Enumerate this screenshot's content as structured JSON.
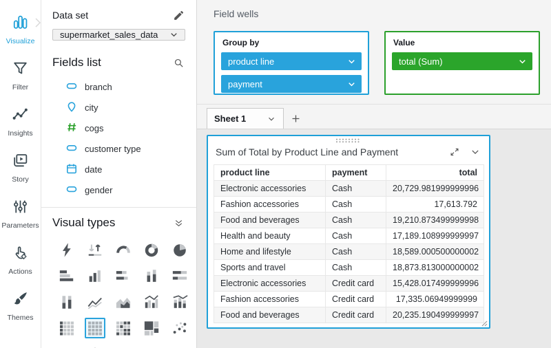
{
  "theme": {
    "accent_blue": "#1FA0D8",
    "pill_blue": "#29A3DC",
    "pill_green": "#2BA52B",
    "well_green_border": "#2BA02B",
    "canvas_gray": "#e9e9e9"
  },
  "sidebar": {
    "items": [
      {
        "label": "Visualize",
        "icon": "bar-chart-icon",
        "active": true
      },
      {
        "label": "Filter",
        "icon": "funnel-icon",
        "active": false
      },
      {
        "label": "Insights",
        "icon": "insights-icon",
        "active": false
      },
      {
        "label": "Story",
        "icon": "story-icon",
        "active": false
      },
      {
        "label": "Parameters",
        "icon": "parameters-icon",
        "active": false
      },
      {
        "label": "Actions",
        "icon": "actions-icon",
        "active": false
      },
      {
        "label": "Themes",
        "icon": "themes-icon",
        "active": false
      }
    ]
  },
  "dataset_panel": {
    "dataset_label": "Data set",
    "dataset_value": "supermarket_sales_data",
    "fields_list_title": "Fields list",
    "fields": [
      {
        "name": "branch",
        "icon": "string-field-icon"
      },
      {
        "name": "city",
        "icon": "geo-field-icon"
      },
      {
        "name": "cogs",
        "icon": "number-field-icon"
      },
      {
        "name": "customer type",
        "icon": "string-field-icon"
      },
      {
        "name": "date",
        "icon": "date-field-icon"
      },
      {
        "name": "gender",
        "icon": "string-field-icon"
      }
    ],
    "visual_types_title": "Visual types",
    "visual_types": [
      "auto-graph",
      "kpi",
      "gauge",
      "donut-chart",
      "pie-chart",
      "horizontal-bar-chart",
      "vertical-bar-chart",
      "horizontal-stacked-bar-chart",
      "vertical-stacked-bar-chart",
      "horizontal-stacked-100-bar-chart",
      "vertical-stacked-100-bar-chart",
      "line-chart",
      "area-chart",
      "clustered-bar-combo-chart",
      "stacked-bar-combo-chart",
      "table",
      "pivot-table",
      "heat-map",
      "tree-map",
      "scatter-plot",
      "geospatial-map",
      "insights-visual",
      "word-cloud"
    ],
    "selected_visual_type": "pivot-table"
  },
  "field_wells": {
    "title": "Field wells",
    "group_by": {
      "label": "Group by",
      "pills": [
        "product line",
        "payment"
      ]
    },
    "value": {
      "label": "Value",
      "pills": [
        "total (Sum)"
      ]
    }
  },
  "sheet_bar": {
    "tab_label": "Sheet 1",
    "add_label": "+"
  },
  "visual": {
    "title": "Sum of Total by Product Line and Payment",
    "table": {
      "columns": [
        "product line",
        "payment",
        "total"
      ],
      "rows": [
        [
          "Electronic accessories",
          "Cash",
          "20,729.981999999996"
        ],
        [
          "Fashion accessories",
          "Cash",
          "17,613.792"
        ],
        [
          "Food and beverages",
          "Cash",
          "19,210.873499999998"
        ],
        [
          "Health and beauty",
          "Cash",
          "17,189.108999999997"
        ],
        [
          "Home and lifestyle",
          "Cash",
          "18,589.000500000002"
        ],
        [
          "Sports and travel",
          "Cash",
          "18,873.813000000002"
        ],
        [
          "Electronic accessories",
          "Credit card",
          "15,428.017499999996"
        ],
        [
          "Fashion accessories",
          "Credit card",
          "17,335.06949999999"
        ],
        [
          "Food and beverages",
          "Credit card",
          "20,235.190499999997"
        ]
      ]
    }
  }
}
